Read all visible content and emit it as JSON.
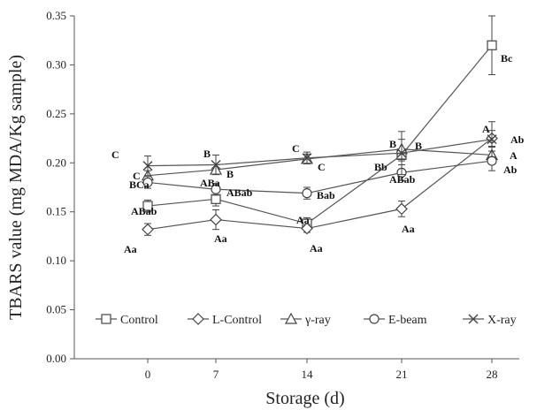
{
  "chart_data": {
    "type": "line",
    "xlabel": "Storage (d)",
    "ylabel": "TBARS value (mg MDA/Kg sample)",
    "categories": [
      "0",
      "7",
      "14",
      "21",
      "28"
    ],
    "ylim": [
      0,
      0.35
    ],
    "yticks": [
      "0.00",
      "0.05",
      "0.10",
      "0.15",
      "0.20",
      "0.25",
      "0.30",
      "0.35"
    ],
    "grid": false,
    "legend_position": "bottom",
    "series": [
      {
        "name": "Control",
        "marker": "square",
        "values": [
          0.156,
          0.163,
          0.138,
          0.208,
          0.32
        ],
        "errors": [
          0.006,
          0.007,
          0.006,
          0.006,
          0.03
        ],
        "labels": [
          "ABab",
          "ABa",
          "Aa",
          "Bb",
          "Bc"
        ]
      },
      {
        "name": "L-Control",
        "marker": "diamond",
        "values": [
          0.132,
          0.142,
          0.133,
          0.153,
          0.225
        ],
        "errors": [
          0.006,
          0.01,
          0.004,
          0.008,
          0.008
        ],
        "labels": [
          "Aa",
          "Aa",
          "Aa",
          "Aa",
          "A"
        ]
      },
      {
        "name": "γ-ray",
        "marker": "triangle",
        "values": [
          0.187,
          0.193,
          0.204,
          0.214,
          0.208
        ],
        "errors": [
          0.005,
          0.005,
          0.005,
          0.01,
          0.008
        ],
        "labels": [
          "C",
          "B",
          "C",
          "B",
          "A"
        ]
      },
      {
        "name": "E-beam",
        "marker": "circle",
        "values": [
          0.18,
          0.173,
          0.169,
          0.19,
          0.202
        ],
        "errors": [
          0.006,
          0.006,
          0.006,
          0.008,
          0.01
        ],
        "labels": [
          "BCa",
          "ABab",
          "Bab",
          "ABab",
          "Ab"
        ]
      },
      {
        "name": "X-ray",
        "marker": "x",
        "values": [
          0.197,
          0.198,
          0.205,
          0.21,
          0.224
        ],
        "errors": [
          0.01,
          0.01,
          0.006,
          0.022,
          0.018
        ],
        "labels": [
          "C",
          "B",
          "C",
          "B",
          "Ab"
        ]
      }
    ]
  }
}
